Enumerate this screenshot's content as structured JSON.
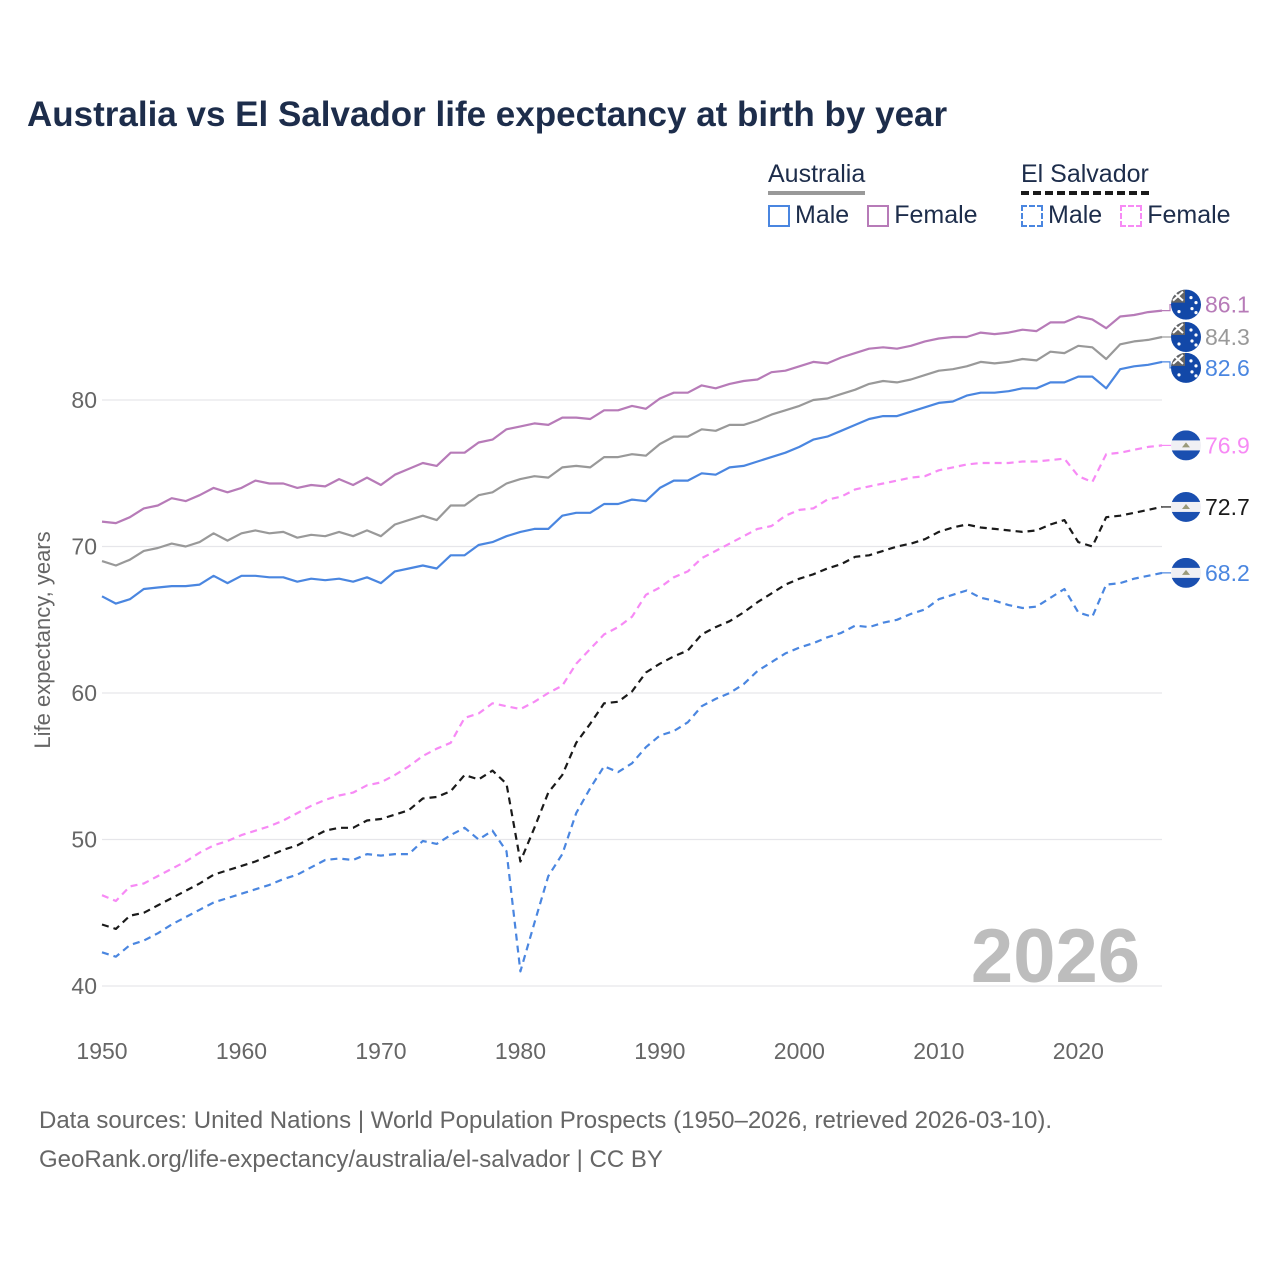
{
  "title": "Australia vs El Salvador life expectancy at birth by year",
  "legend": {
    "groups": [
      {
        "name": "Australia",
        "items": [
          "Male",
          "Female"
        ]
      },
      {
        "name": "El Salvador",
        "items": [
          "Male",
          "Female"
        ]
      }
    ]
  },
  "footer": {
    "line1": "Data sources: United Nations | World Population Prospects (1950–2026, retrieved 2026-03-10).",
    "line2": "GeoRank.org/life-expectancy/australia/el-salvador | CC BY"
  },
  "chart_data": {
    "type": "line",
    "title": "Australia vs El Salvador life expectancy at birth by year",
    "xlabel": "",
    "ylabel": "Life expectancy, years",
    "xlim": [
      1950,
      2026
    ],
    "ylim": [
      40,
      88
    ],
    "x_ticks": [
      "1950",
      "1960",
      "1970",
      "1980",
      "1990",
      "2000",
      "2010",
      "2020"
    ],
    "y_ticks": [
      "40",
      "50",
      "60",
      "70",
      "80"
    ],
    "grid": true,
    "year_watermark": "2026",
    "x_start": 1950,
    "series": [
      {
        "name": "Australia Female",
        "color": "#b77bb8",
        "dash": false,
        "flag": "australia-flag",
        "end_label": "86.1",
        "values": [
          71.7,
          71.6,
          72.0,
          72.6,
          72.8,
          73.3,
          73.1,
          73.5,
          74.0,
          73.7,
          74.0,
          74.5,
          74.3,
          74.3,
          74.0,
          74.2,
          74.1,
          74.6,
          74.2,
          74.7,
          74.2,
          74.9,
          75.3,
          75.7,
          75.5,
          76.4,
          76.4,
          77.1,
          77.3,
          78.0,
          78.2,
          78.4,
          78.3,
          78.8,
          78.8,
          78.7,
          79.3,
          79.3,
          79.6,
          79.4,
          80.1,
          80.5,
          80.5,
          81.0,
          80.8,
          81.1,
          81.3,
          81.4,
          81.9,
          82.0,
          82.3,
          82.6,
          82.5,
          82.9,
          83.2,
          83.5,
          83.6,
          83.5,
          83.7,
          84.0,
          84.2,
          84.3,
          84.3,
          84.6,
          84.5,
          84.6,
          84.8,
          84.7,
          85.3,
          85.3,
          85.7,
          85.5,
          84.9,
          85.7,
          85.8,
          86.0,
          86.1
        ]
      },
      {
        "name": "Australia Total",
        "color": "#999999",
        "dash": false,
        "flag": "australia-flag",
        "end_label": "84.3",
        "values": [
          69.0,
          68.7,
          69.1,
          69.7,
          69.9,
          70.2,
          70.0,
          70.3,
          70.9,
          70.4,
          70.9,
          71.1,
          70.9,
          71.0,
          70.6,
          70.8,
          70.7,
          71.0,
          70.7,
          71.1,
          70.7,
          71.5,
          71.8,
          72.1,
          71.8,
          72.8,
          72.8,
          73.5,
          73.7,
          74.3,
          74.6,
          74.8,
          74.7,
          75.4,
          75.5,
          75.4,
          76.1,
          76.1,
          76.3,
          76.2,
          77.0,
          77.5,
          77.5,
          78.0,
          77.9,
          78.3,
          78.3,
          78.6,
          79.0,
          79.3,
          79.6,
          80.0,
          80.1,
          80.4,
          80.7,
          81.1,
          81.3,
          81.2,
          81.4,
          81.7,
          82.0,
          82.1,
          82.3,
          82.6,
          82.5,
          82.6,
          82.8,
          82.7,
          83.3,
          83.2,
          83.7,
          83.6,
          82.8,
          83.8,
          84.0,
          84.1,
          84.3
        ]
      },
      {
        "name": "Australia Male",
        "color": "#4a86e0",
        "dash": false,
        "flag": "australia-flag",
        "end_label": "82.6",
        "values": [
          66.6,
          66.1,
          66.4,
          67.1,
          67.2,
          67.3,
          67.3,
          67.4,
          68.0,
          67.5,
          68.0,
          68.0,
          67.9,
          67.9,
          67.6,
          67.8,
          67.7,
          67.8,
          67.6,
          67.9,
          67.5,
          68.3,
          68.5,
          68.7,
          68.5,
          69.4,
          69.4,
          70.1,
          70.3,
          70.7,
          71.0,
          71.2,
          71.2,
          72.1,
          72.3,
          72.3,
          72.9,
          72.9,
          73.2,
          73.1,
          74.0,
          74.5,
          74.5,
          75.0,
          74.9,
          75.4,
          75.5,
          75.8,
          76.1,
          76.4,
          76.8,
          77.3,
          77.5,
          77.9,
          78.3,
          78.7,
          78.9,
          78.9,
          79.2,
          79.5,
          79.8,
          79.9,
          80.3,
          80.5,
          80.5,
          80.6,
          80.8,
          80.8,
          81.2,
          81.2,
          81.6,
          81.6,
          80.8,
          82.1,
          82.3,
          82.4,
          82.6
        ]
      },
      {
        "name": "El Salvador Female",
        "color": "#f78af5",
        "dash": true,
        "flag": "el-salvador-flag",
        "end_label": "76.9",
        "values": [
          46.2,
          45.8,
          46.8,
          47.0,
          47.5,
          48.0,
          48.5,
          49.1,
          49.6,
          49.9,
          50.3,
          50.6,
          50.9,
          51.3,
          51.8,
          52.3,
          52.7,
          53.0,
          53.2,
          53.7,
          53.9,
          54.4,
          55.0,
          55.7,
          56.2,
          56.6,
          58.3,
          58.6,
          59.3,
          59.1,
          58.9,
          59.4,
          60.0,
          60.5,
          62.0,
          63.0,
          64.0,
          64.5,
          65.2,
          66.7,
          67.2,
          67.9,
          68.3,
          69.2,
          69.7,
          70.2,
          70.7,
          71.2,
          71.4,
          72.1,
          72.5,
          72.6,
          73.2,
          73.4,
          73.9,
          74.1,
          74.3,
          74.5,
          74.7,
          74.8,
          75.2,
          75.4,
          75.6,
          75.7,
          75.7,
          75.7,
          75.8,
          75.8,
          75.9,
          76.0,
          74.8,
          74.4,
          76.3,
          76.4,
          76.6,
          76.8,
          76.9
        ]
      },
      {
        "name": "El Salvador Total",
        "color": "#1a1a1a",
        "dash": true,
        "flag": "el-salvador-flag",
        "end_label": "72.7",
        "values": [
          44.2,
          43.9,
          44.8,
          45.0,
          45.5,
          46.0,
          46.5,
          47.0,
          47.6,
          47.9,
          48.2,
          48.5,
          48.9,
          49.3,
          49.6,
          50.1,
          50.6,
          50.8,
          50.8,
          51.3,
          51.4,
          51.7,
          52.0,
          52.8,
          52.9,
          53.3,
          54.4,
          54.1,
          54.7,
          53.8,
          48.5,
          50.8,
          53.2,
          54.4,
          56.6,
          57.9,
          59.3,
          59.4,
          60.1,
          61.4,
          62.0,
          62.5,
          62.9,
          64.0,
          64.5,
          64.9,
          65.5,
          66.2,
          66.8,
          67.4,
          67.8,
          68.1,
          68.5,
          68.8,
          69.3,
          69.4,
          69.7,
          70.0,
          70.2,
          70.5,
          71.0,
          71.3,
          71.5,
          71.3,
          71.2,
          71.1,
          71.0,
          71.1,
          71.5,
          71.8,
          70.3,
          70.0,
          72.0,
          72.1,
          72.3,
          72.5,
          72.7
        ]
      },
      {
        "name": "El Salvador Male",
        "color": "#4a86e0",
        "dash": true,
        "flag": "el-salvador-flag",
        "end_label": "68.2",
        "values": [
          42.3,
          42.0,
          42.8,
          43.1,
          43.6,
          44.2,
          44.7,
          45.2,
          45.7,
          46.0,
          46.3,
          46.6,
          46.9,
          47.3,
          47.6,
          48.1,
          48.6,
          48.7,
          48.6,
          49.0,
          48.9,
          49.0,
          49.0,
          49.9,
          49.7,
          50.3,
          50.8,
          50.0,
          50.6,
          49.2,
          41.0,
          44.3,
          47.5,
          49.0,
          51.8,
          53.5,
          55.0,
          54.6,
          55.2,
          56.3,
          57.1,
          57.4,
          58.0,
          59.1,
          59.6,
          60.0,
          60.6,
          61.5,
          62.1,
          62.7,
          63.1,
          63.4,
          63.8,
          64.1,
          64.6,
          64.5,
          64.8,
          65.0,
          65.4,
          65.7,
          66.4,
          66.7,
          67.0,
          66.5,
          66.3,
          66.0,
          65.8,
          65.9,
          66.5,
          67.1,
          65.5,
          65.2,
          67.4,
          67.5,
          67.8,
          68.0,
          68.2
        ]
      }
    ]
  }
}
